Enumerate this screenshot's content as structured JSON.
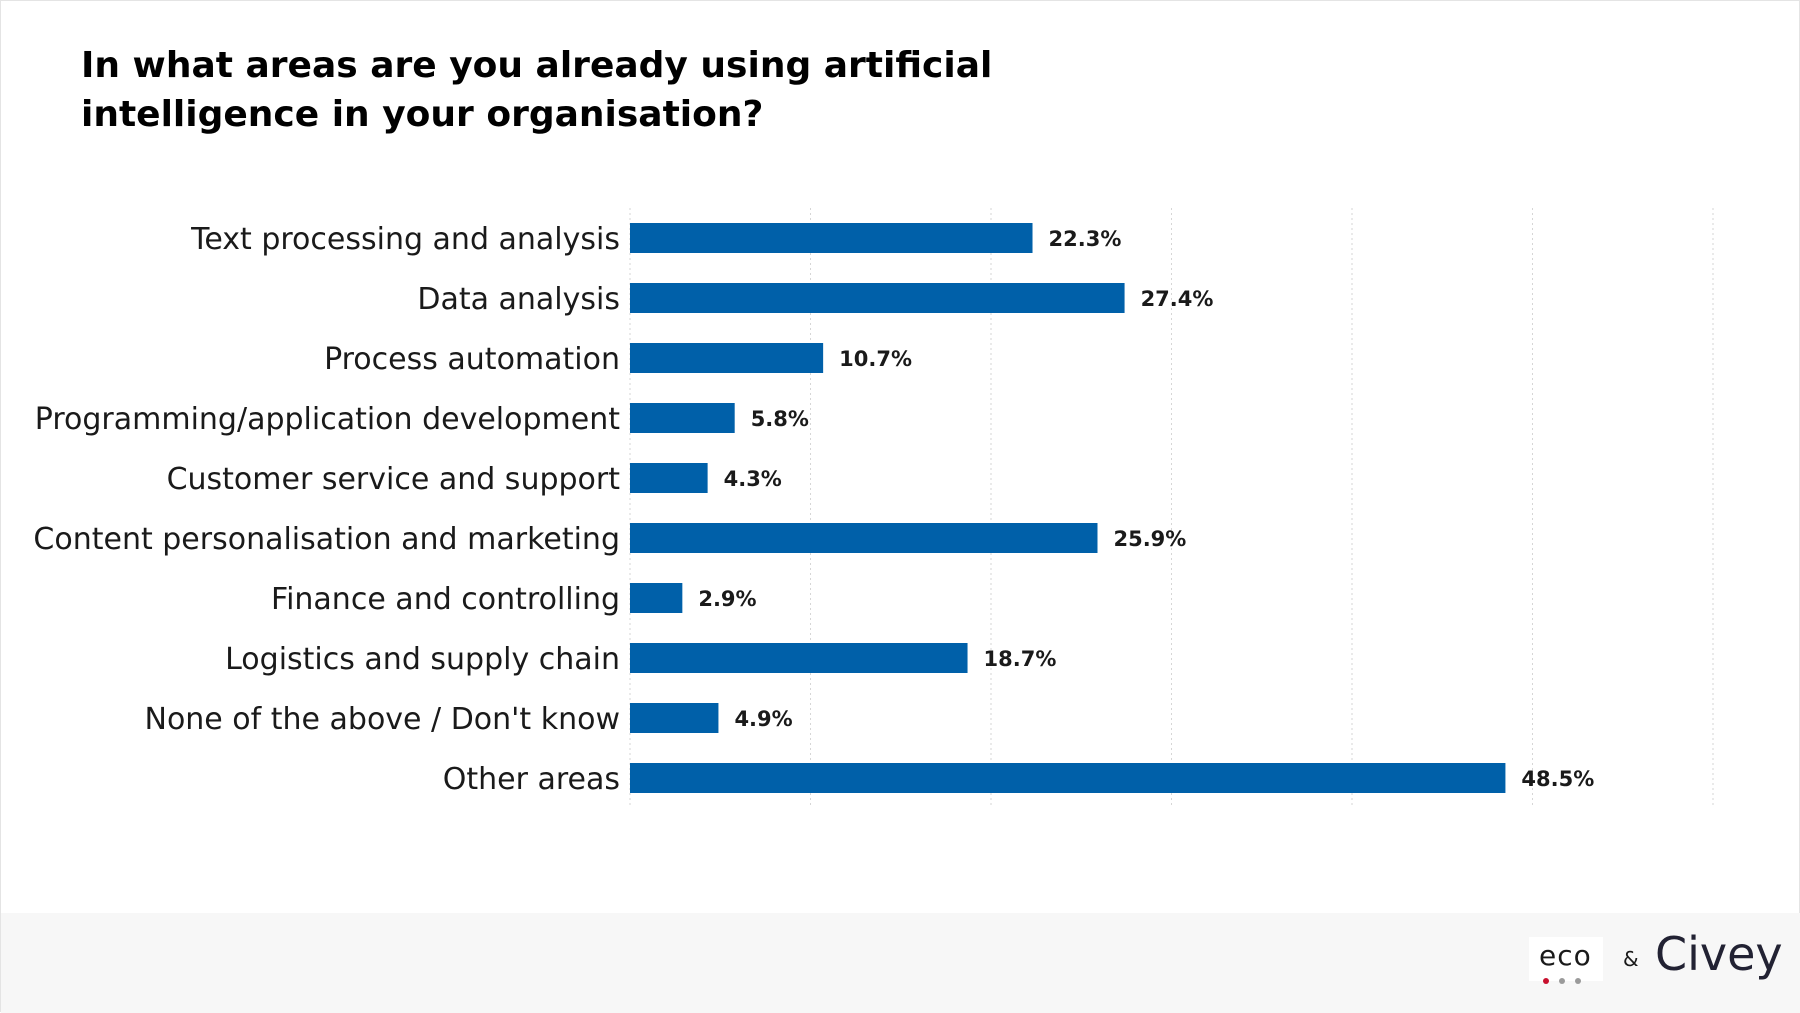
{
  "colors": {
    "bar": "#0060a9",
    "grid": "#d6d6d6",
    "eco_dot_1": "#c8102e",
    "eco_dot_2": "#9a9a9a",
    "eco_dot_3": "#9a9a9a"
  },
  "footer": {
    "eco_logo": "eco",
    "ampersand": "&",
    "civey_logo": "Civey"
  },
  "chart_data": {
    "type": "bar",
    "orientation": "horizontal",
    "title": "In what areas are you already using artificial intelligence in your organisation?",
    "categories": [
      "Text processing and analysis",
      "Data analysis",
      "Process automation",
      "Programming/application development",
      "Customer service and support",
      "Content personalisation and marketing",
      "Finance and controlling",
      "Logistics and supply chain",
      "None of the above / Don't know",
      "Other areas"
    ],
    "values": [
      22.3,
      27.4,
      10.7,
      5.8,
      4.3,
      25.9,
      2.9,
      18.7,
      4.9,
      48.5
    ],
    "value_labels": [
      "22.3%",
      "27.4%",
      "10.7%",
      "5.8%",
      "4.3%",
      "25.9%",
      "2.9%",
      "18.7%",
      "4.9%",
      "48.5%"
    ],
    "xlim": [
      0,
      60
    ],
    "grid_step": 10,
    "grid": true,
    "xlabel": "",
    "ylabel": ""
  }
}
